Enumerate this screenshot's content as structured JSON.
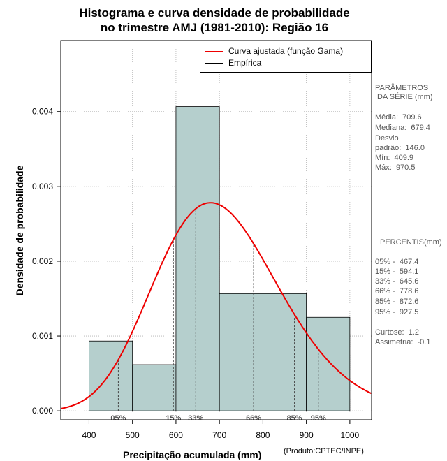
{
  "title": {
    "line1": "Histograma e curva densidade de probabilidade",
    "line2": "no trimestre AMJ (1981-2010): Região 16"
  },
  "legend": {
    "fitted": "Curva ajustada (função Gama)",
    "empirical": "Empírica"
  },
  "parameters": {
    "heading1": "PARÂMETROS",
    "heading2": " DA SÉRIE (mm)",
    "mean": "Média:  709.6",
    "median": "Mediana:  679.4",
    "sd1": "Desvio",
    "sd2": "padrão:  146.0",
    "min": "Mín:  409.9",
    "max": "Máx:  970.5"
  },
  "percentiles": {
    "heading": "PERCENTIS(mm)",
    "p05": "05% -  467.4",
    "p15": "15% -  594.1",
    "p33": "33% -  645.6",
    "p66": "66% -  778.6",
    "p85": "85% -  872.6",
    "p95": "95% -  927.5"
  },
  "stats": {
    "kurtosis": "Curtose:  1.2",
    "skewness": "Assimetria:  -0.1"
  },
  "axis_text": {
    "xlabel": "Precipitação acumulada (mm)",
    "credit": "(Produto:CPTEC/INPE)",
    "ylabel": "Densidade de probabilidade"
  },
  "colors": {
    "bar_fill": "#b5cfcd",
    "curve": "#ee0000",
    "grid": "#b0b0b0"
  },
  "chart_data": {
    "type": "bar",
    "title": "Histograma e curva densidade de probabilidade no trimestre AMJ (1981-2010): Região 16",
    "xlabel": "Precipitação acumulada (mm)",
    "ylabel": "Densidade de probabilidade",
    "xlim": [
      335,
      1050
    ],
    "ylim": [
      -0.00012,
      0.00495
    ],
    "x_ticks": [
      400,
      500,
      600,
      700,
      800,
      900,
      1000
    ],
    "y_ticks": [
      0.0,
      0.001,
      0.002,
      0.003,
      0.004
    ],
    "y_tick_labels": [
      "0.000",
      "0.001",
      "0.002",
      "0.003",
      "0.004"
    ],
    "bins": [
      {
        "from": 400,
        "to": 500,
        "density": 0.000933
      },
      {
        "from": 500,
        "to": 600,
        "density": 0.000617
      },
      {
        "from": 600,
        "to": 700,
        "density": 0.004067
      },
      {
        "from": 700,
        "to": 900,
        "density": 0.001567
      },
      {
        "from": 900,
        "to": 1000,
        "density": 0.00125
      }
    ],
    "fitted_curve": {
      "name": "Curva ajustada (função Gama)",
      "distribution": "gamma",
      "mean": 709.6,
      "sd": 146.0
    },
    "percentile_markers": [
      {
        "label": "05%",
        "value": 467.4
      },
      {
        "label": "15%",
        "value": 594.1
      },
      {
        "label": "33%",
        "value": 645.6
      },
      {
        "label": "66%",
        "value": 778.6
      },
      {
        "label": "85%",
        "value": 872.6
      },
      {
        "label": "95%",
        "value": 927.5
      }
    ],
    "grid": true,
    "legend_position": "top-right"
  }
}
